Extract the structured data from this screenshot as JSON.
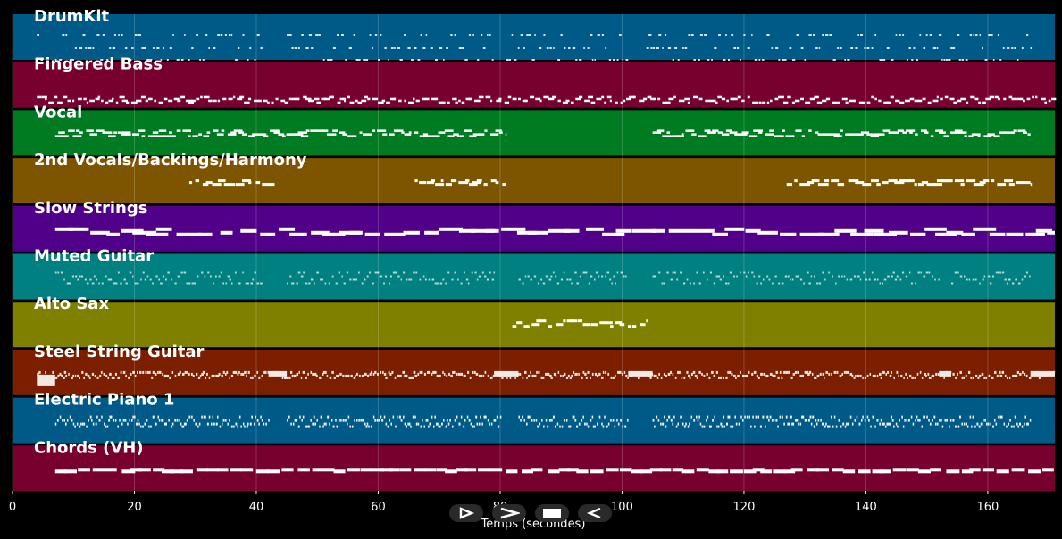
{
  "tracks": [
    {
      "name": "DrumKit",
      "color": "#005a87",
      "pattern": "drums"
    },
    {
      "name": "Fingered Bass",
      "color": "#78002f",
      "pattern": "bass"
    },
    {
      "name": "Vocal",
      "color": "#007b22",
      "pattern": "vocal"
    },
    {
      "name": "2nd Vocals/Backings/Harmony",
      "color": "#7d5500",
      "pattern": "backing"
    },
    {
      "name": "Slow Strings",
      "color": "#51008a",
      "pattern": "strings"
    },
    {
      "name": "Muted Guitar",
      "color": "#008080",
      "pattern": "muted"
    },
    {
      "name": "Alto Sax",
      "color": "#808000",
      "pattern": "sax"
    },
    {
      "name": "Steel String Guitar",
      "color": "#7b1f00",
      "pattern": "steel"
    },
    {
      "name": "Electric Piano 1",
      "color": "#005a87",
      "pattern": "epiano"
    },
    {
      "name": "Chords (VH)",
      "color": "#78002f",
      "pattern": "chords"
    }
  ],
  "axis": {
    "title": "Temps (secondes)",
    "min": 0,
    "max": 171,
    "ticks": [
      0,
      20,
      40,
      60,
      80,
      100,
      120,
      140,
      160
    ]
  },
  "controls": [
    {
      "name": "play-button",
      "icon": "play-icon"
    },
    {
      "name": "fast-forward-button",
      "icon": "fast-forward-icon"
    },
    {
      "name": "stop-button",
      "icon": "stop-icon"
    },
    {
      "name": "rewind-button",
      "icon": "rewind-icon"
    }
  ],
  "colors": {
    "background": "#000000",
    "note": "#ffffff",
    "grid": "#ffffff"
  }
}
